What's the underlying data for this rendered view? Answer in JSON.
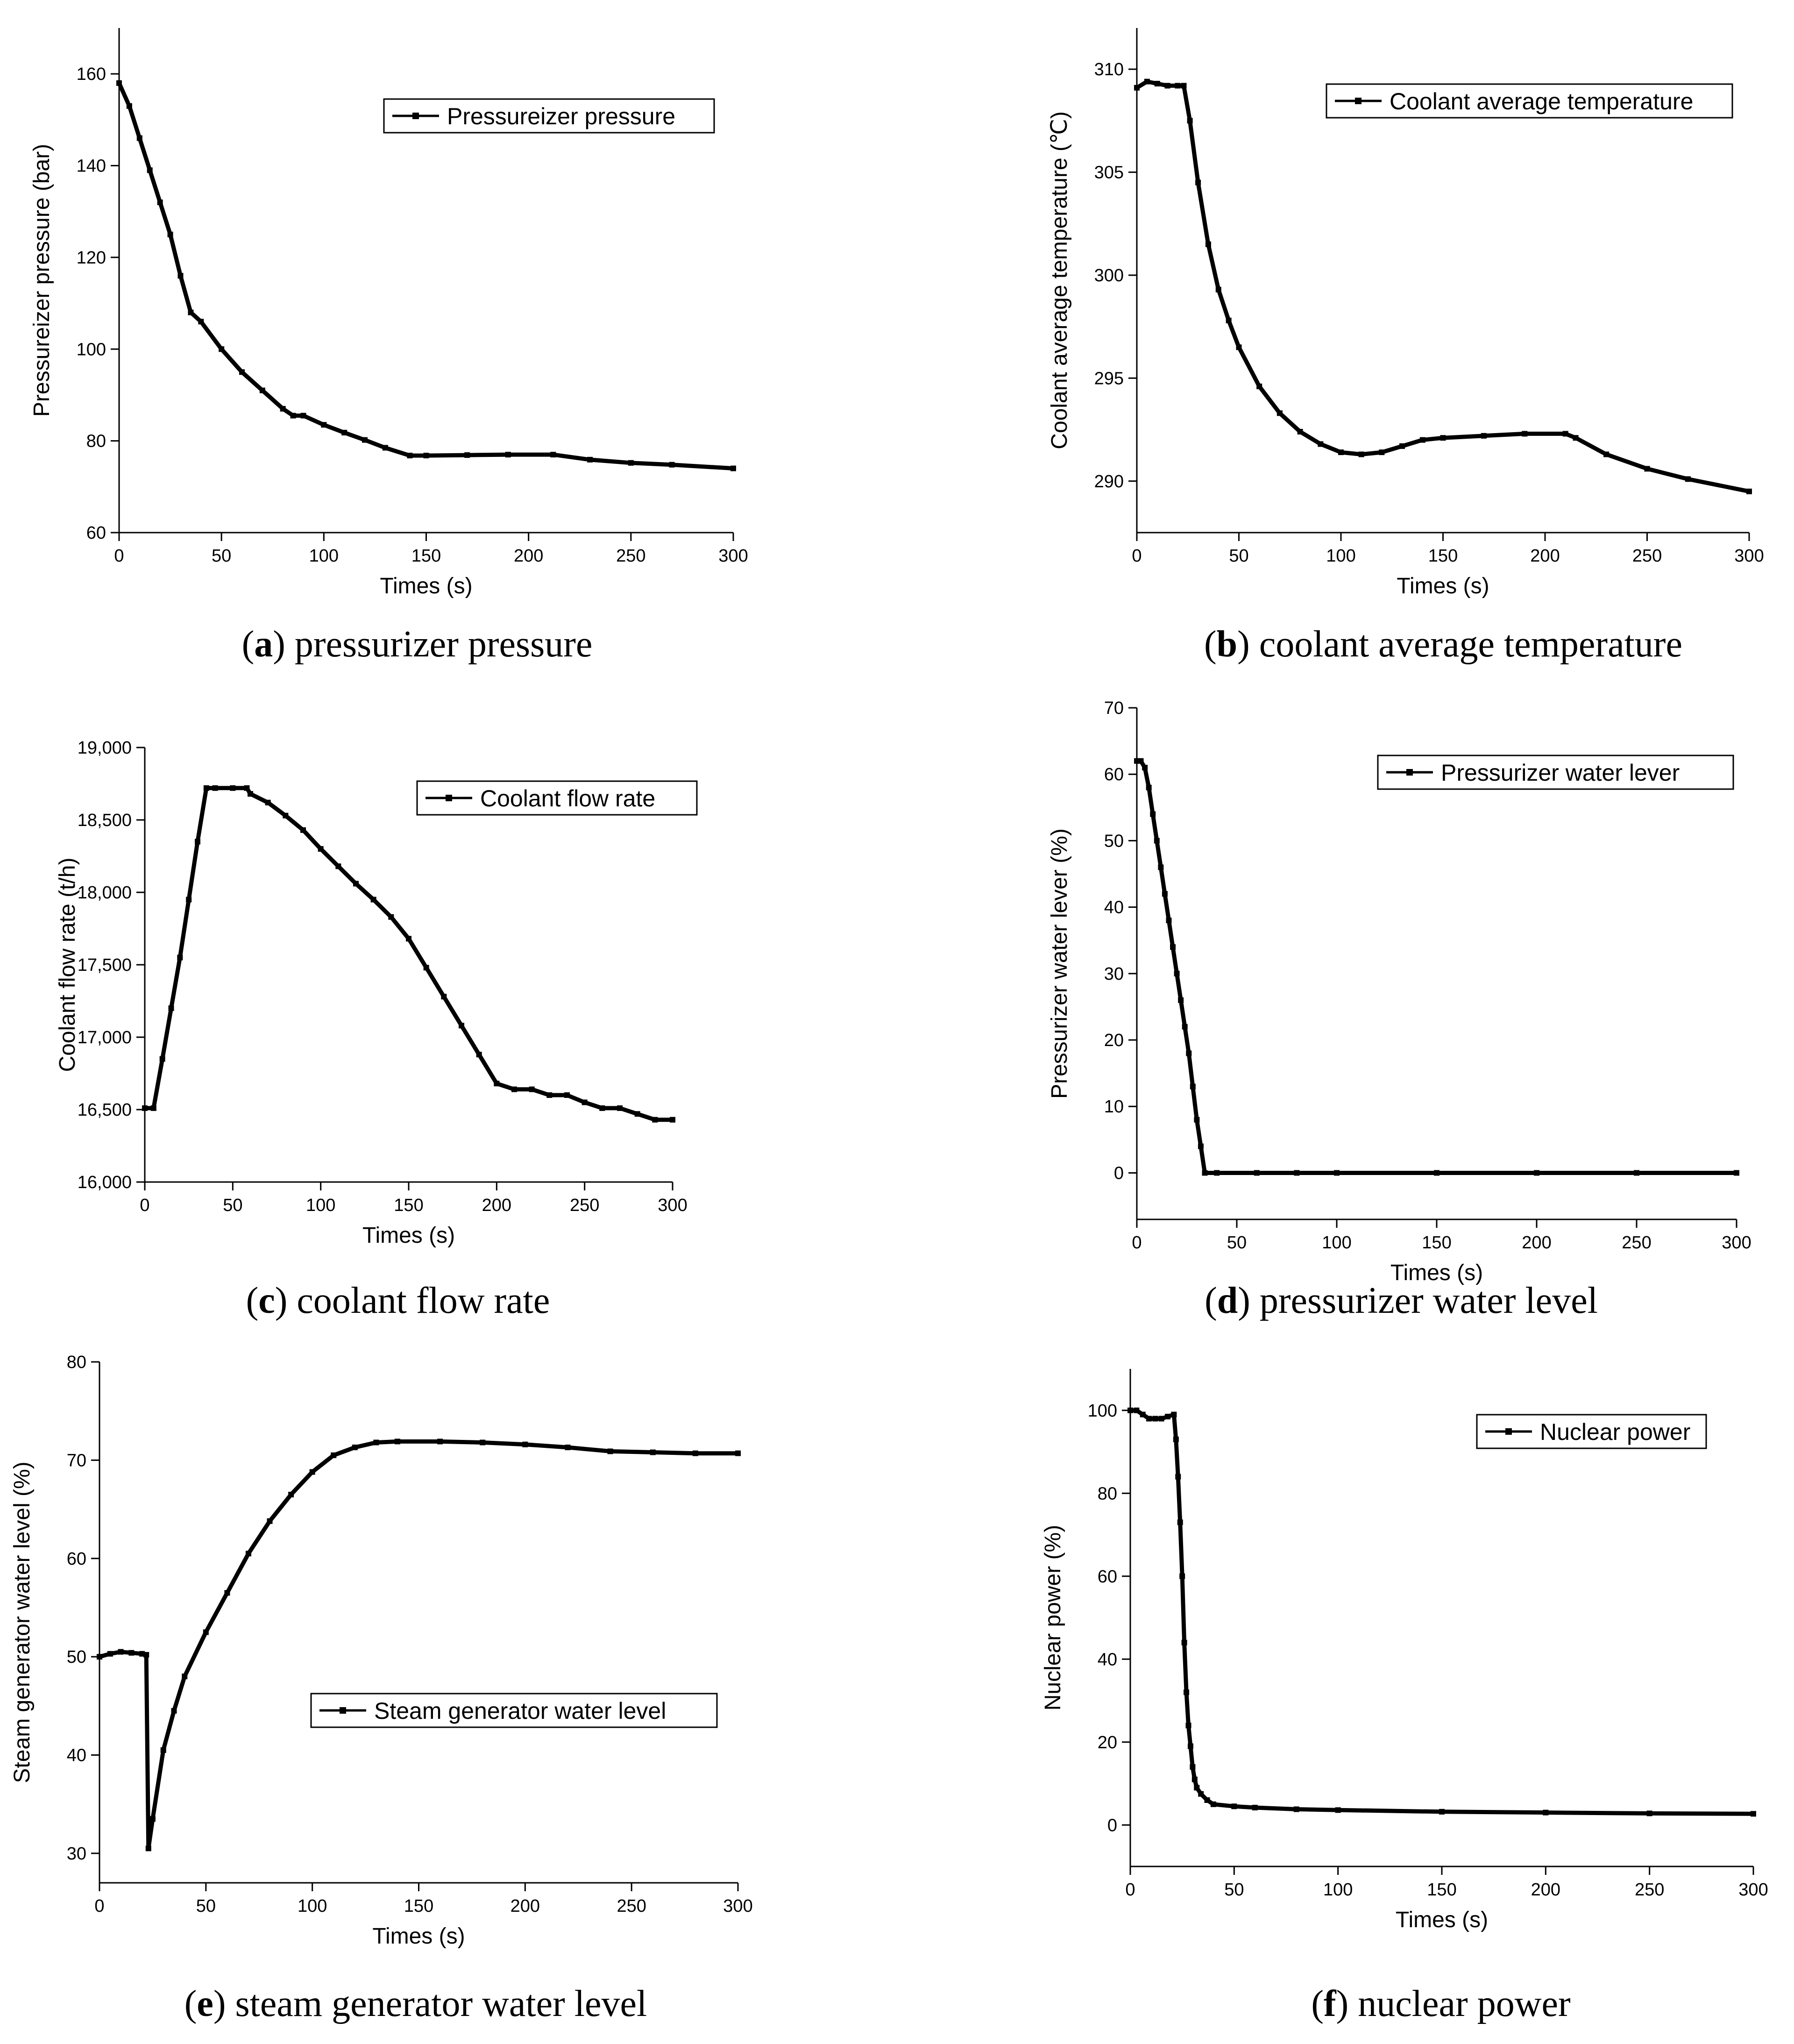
{
  "chart_data": [
    {
      "id": "a",
      "type": "line",
      "caption_letter": "a",
      "caption_text": "pressurizer pressure",
      "xlabel": "Times (s)",
      "ylabel": "Pressureizer pressure (bar)",
      "legend": "Pressureizer pressure",
      "legend_position": "top-right",
      "xlim": [
        0,
        300
      ],
      "ylim": [
        60,
        170
      ],
      "xticks": [
        0,
        50,
        100,
        150,
        200,
        250,
        300
      ],
      "yticks": [
        60,
        80,
        100,
        120,
        140,
        160
      ],
      "ytick_labels": [
        "60",
        "80",
        "100",
        "120",
        "140",
        "160"
      ],
      "series": [
        {
          "name": "Pressureizer pressure",
          "x": [
            0,
            5,
            10,
            15,
            20,
            25,
            30,
            35,
            40,
            50,
            60,
            70,
            80,
            85,
            90,
            100,
            110,
            120,
            130,
            142,
            150,
            170,
            190,
            212,
            230,
            250,
            270,
            300
          ],
          "y": [
            158,
            153,
            146,
            139,
            132,
            125,
            116,
            108,
            106,
            100,
            95,
            91,
            87,
            85.5,
            85.5,
            83.5,
            81.8,
            80.2,
            78.5,
            76.8,
            76.8,
            76.9,
            77,
            77,
            75.9,
            75.2,
            74.8,
            74
          ]
        }
      ]
    },
    {
      "id": "b",
      "type": "line",
      "caption_letter": "b",
      "caption_text": "coolant average temperature",
      "xlabel": "Times (s)",
      "ylabel": "Coolant average temperature (℃)",
      "legend": "Coolant average temperature",
      "legend_position": "top-right",
      "xlim": [
        0,
        300
      ],
      "ylim": [
        287.5,
        312
      ],
      "xticks": [
        0,
        50,
        100,
        150,
        200,
        250,
        300
      ],
      "yticks": [
        290,
        295,
        300,
        305,
        310
      ],
      "ytick_labels": [
        "290",
        "295",
        "300",
        "305",
        "310"
      ],
      "series": [
        {
          "name": "Coolant average temperature",
          "x": [
            0,
            5,
            10,
            15,
            20,
            23,
            26,
            30,
            35,
            40,
            45,
            50,
            60,
            70,
            80,
            90,
            100,
            110,
            120,
            130,
            140,
            150,
            170,
            190,
            210,
            215,
            230,
            250,
            270,
            300
          ],
          "y": [
            309.1,
            309.4,
            309.3,
            309.2,
            309.2,
            309.2,
            307.5,
            304.5,
            301.5,
            299.3,
            297.8,
            296.5,
            294.6,
            293.3,
            292.4,
            291.8,
            291.4,
            291.3,
            291.4,
            291.7,
            292,
            292.1,
            292.2,
            292.3,
            292.3,
            292.1,
            291.3,
            290.6,
            290.1,
            289.5
          ]
        }
      ]
    },
    {
      "id": "c",
      "type": "line",
      "caption_letter": "c",
      "caption_text": "coolant flow rate",
      "xlabel": "Times (s)",
      "ylabel": "Coolant flow rate (t/h)",
      "legend": "Coolant flow rate",
      "legend_position": "top-right",
      "xlim": [
        0,
        300
      ],
      "ylim": [
        16000,
        19000
      ],
      "xticks": [
        0,
        50,
        100,
        150,
        200,
        250,
        300
      ],
      "yticks": [
        16000,
        16500,
        17000,
        17500,
        18000,
        18500,
        19000
      ],
      "ytick_labels": [
        "16,000",
        "16,500",
        "17,000",
        "17,500",
        "18,000",
        "18,500",
        "19,000"
      ],
      "series": [
        {
          "name": "Coolant flow rate",
          "x": [
            0,
            5,
            10,
            15,
            20,
            25,
            30,
            35,
            40,
            50,
            58,
            60,
            70,
            80,
            90,
            100,
            110,
            120,
            130,
            140,
            150,
            160,
            170,
            180,
            190,
            200,
            210,
            220,
            230,
            240,
            250,
            260,
            270,
            280,
            290,
            300
          ],
          "y": [
            16510,
            16510,
            16850,
            17200,
            17550,
            17950,
            18350,
            18720,
            18720,
            18720,
            18720,
            18680,
            18620,
            18530,
            18430,
            18300,
            18180,
            18060,
            17950,
            17830,
            17680,
            17480,
            17280,
            17080,
            16880,
            16680,
            16640,
            16640,
            16600,
            16600,
            16550,
            16510,
            16510,
            16470,
            16430,
            16430
          ]
        }
      ]
    },
    {
      "id": "d",
      "type": "line",
      "caption_letter": "d",
      "caption_text": "pressurizer water level",
      "xlabel": "Times (s)",
      "ylabel": "Pressurizer water lever (%)",
      "legend": "Pressurizer water lever",
      "legend_position": "top-right",
      "xlim": [
        0,
        300
      ],
      "ylim": [
        -7,
        70
      ],
      "xticks": [
        0,
        50,
        100,
        150,
        200,
        250,
        300
      ],
      "yticks": [
        0,
        10,
        20,
        30,
        40,
        50,
        60,
        70
      ],
      "ytick_labels": [
        "0",
        "10",
        "20",
        "30",
        "40",
        "50",
        "60",
        "70"
      ],
      "series": [
        {
          "name": "Pressurizer water lever",
          "x": [
            0,
            2,
            4,
            6,
            8,
            10,
            12,
            14,
            16,
            18,
            20,
            22,
            24,
            26,
            28,
            30,
            32,
            34,
            40,
            60,
            80,
            100,
            150,
            200,
            250,
            300
          ],
          "y": [
            62,
            62,
            61,
            58,
            54,
            50,
            46,
            42,
            38,
            34,
            30,
            26,
            22,
            18,
            13,
            8,
            4,
            0,
            0,
            0,
            0,
            0,
            0,
            0,
            0,
            0
          ]
        }
      ]
    },
    {
      "id": "e",
      "type": "line",
      "caption_letter": "e",
      "caption_text": "steam generator water level",
      "xlabel": "Times (s)",
      "ylabel": "Steam generator water level (%)",
      "legend": "Steam generator water level",
      "legend_position": "center-right",
      "xlim": [
        0,
        300
      ],
      "ylim": [
        27,
        80
      ],
      "xticks": [
        0,
        50,
        100,
        150,
        200,
        250,
        300
      ],
      "yticks": [
        30,
        40,
        50,
        60,
        70,
        80
      ],
      "ytick_labels": [
        "30",
        "40",
        "50",
        "60",
        "70",
        "80"
      ],
      "series": [
        {
          "name": "Steam generator water level",
          "x": [
            0,
            5,
            10,
            15,
            20,
            22,
            23,
            25,
            30,
            35,
            40,
            50,
            60,
            70,
            80,
            90,
            100,
            110,
            120,
            130,
            140,
            160,
            180,
            200,
            220,
            240,
            260,
            280,
            300
          ],
          "y": [
            50,
            50.3,
            50.5,
            50.4,
            50.3,
            50.2,
            30.5,
            33.5,
            40.5,
            44.5,
            48,
            52.5,
            56.5,
            60.5,
            63.8,
            66.5,
            68.8,
            70.5,
            71.3,
            71.8,
            71.9,
            71.9,
            71.8,
            71.6,
            71.3,
            70.9,
            70.8,
            70.7,
            70.7
          ]
        }
      ]
    },
    {
      "id": "f",
      "type": "line",
      "caption_letter": "f",
      "caption_text": "nuclear power",
      "xlabel": "Times (s)",
      "ylabel": "Nuclear power (%)",
      "legend": "Nuclear power",
      "legend_position": "top-right",
      "xlim": [
        0,
        300
      ],
      "ylim": [
        -10,
        110
      ],
      "xticks": [
        0,
        50,
        100,
        150,
        200,
        250,
        300
      ],
      "yticks": [
        0,
        20,
        40,
        60,
        80,
        100
      ],
      "ytick_labels": [
        "0",
        "20",
        "40",
        "60",
        "80",
        "100"
      ],
      "series": [
        {
          "name": "Nuclear power",
          "x": [
            0,
            3,
            6,
            9,
            12,
            15,
            18,
            21,
            22,
            23,
            24,
            25,
            26,
            27,
            28,
            29,
            30,
            31,
            32,
            34,
            37,
            40,
            50,
            60,
            80,
            100,
            150,
            200,
            250,
            300
          ],
          "y": [
            100,
            100,
            99,
            98,
            98,
            98,
            98.5,
            99,
            93,
            84,
            73,
            60,
            44,
            32,
            24,
            19,
            14,
            11,
            9,
            7.5,
            6,
            5,
            4.5,
            4.2,
            3.8,
            3.6,
            3.2,
            3,
            2.8,
            2.7
          ]
        }
      ]
    }
  ]
}
